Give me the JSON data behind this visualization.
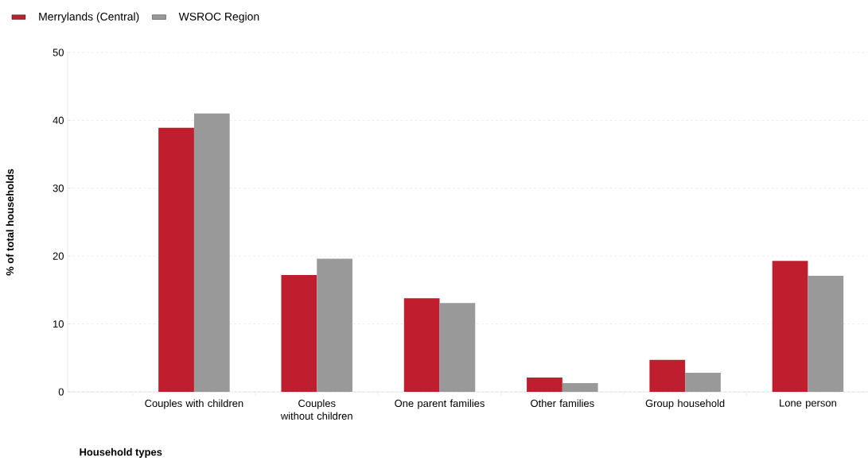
{
  "chart_data": {
    "type": "bar",
    "xlabel": "Household types",
    "ylabel": "% of total households",
    "categories": [
      "Couples with children",
      "Couples without children",
      "One parent families",
      "Other families",
      "Group household",
      "Lone person"
    ],
    "series": [
      {
        "name": "Merrylands (Central)",
        "color": "#be1e2d",
        "values": [
          38.9,
          17.2,
          13.8,
          2.1,
          4.7,
          19.3
        ]
      },
      {
        "name": "WSROC Region",
        "color": "#999999",
        "values": [
          41.0,
          19.6,
          13.1,
          1.3,
          2.8,
          17.1
        ]
      }
    ],
    "ylim": [
      0,
      50
    ],
    "yticks": [
      0,
      10,
      20,
      30,
      40,
      50
    ],
    "grid": "y",
    "legend": "top left"
  }
}
